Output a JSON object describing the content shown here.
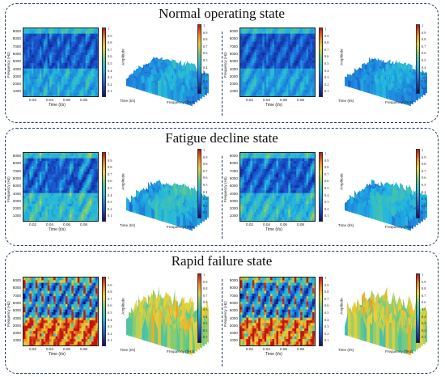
{
  "panels": [
    {
      "title": "Normal operating state"
    },
    {
      "title": "Fatigue decline state"
    },
    {
      "title": "Rapid failure state"
    }
  ],
  "spectrogram": {
    "ylabel": "Frequency (Hz)",
    "xlabel": "Time (t/s)",
    "yticks": [
      "9000",
      "8000",
      "7000",
      "6000",
      "5000",
      "4000",
      "3000",
      "2000",
      "1000"
    ],
    "xticks": [
      "0.02",
      "0.04",
      "0.06",
      "0.08"
    ]
  },
  "surface": {
    "zlabel": "Amplitude",
    "xlabel": "Time (t/s)",
    "ylabel": "Frequency (f/Hz)"
  },
  "colorbar_ticks": [
    "1",
    "0.9",
    "0.8",
    "0.7",
    "0.6",
    "0.5",
    "0.4",
    "0.3",
    "0.2",
    "0.1"
  ],
  "colors": {
    "panel_border": "#1f3b5f",
    "colormap": [
      "#0a1070",
      "#1c5fd8",
      "#22b8e0",
      "#5ec98a",
      "#e8d23a",
      "#f08a1e",
      "#c21414"
    ]
  }
}
